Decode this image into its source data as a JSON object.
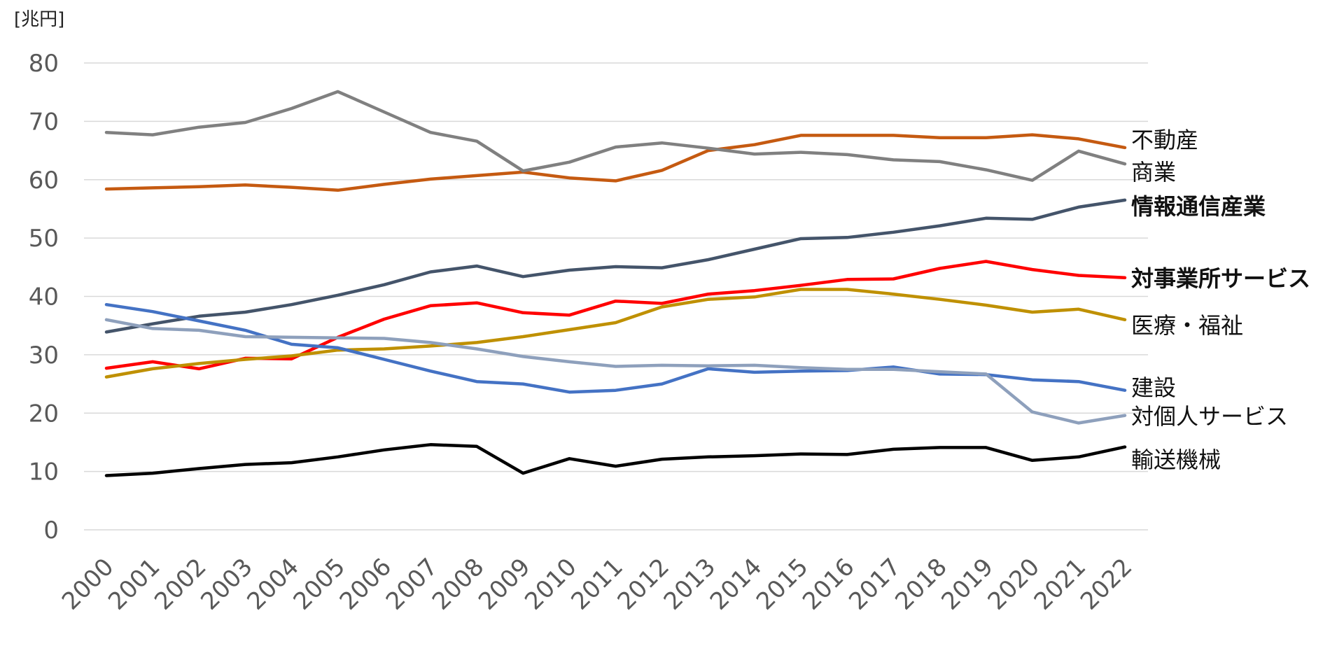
{
  "chart_data": {
    "type": "line",
    "unit_label": "[兆円]",
    "ylim": [
      0,
      80
    ],
    "yticks": [
      0,
      10,
      20,
      30,
      40,
      50,
      60,
      70,
      80
    ],
    "grid": true,
    "legend": "labels at right end of each line",
    "categories": [
      "2000",
      "2001",
      "2002",
      "2003",
      "2004",
      "2005",
      "2006",
      "2007",
      "2008",
      "2009",
      "2010",
      "2011",
      "2012",
      "2013",
      "2014",
      "2015",
      "2016",
      "2017",
      "2018",
      "2019",
      "2020",
      "2021",
      "2022"
    ],
    "series": [
      {
        "name": "不動産",
        "color": "#C55A11",
        "bold": false,
        "values": [
          58.4,
          58.6,
          58.8,
          59.1,
          58.7,
          58.2,
          59.2,
          60.1,
          60.7,
          61.3,
          60.3,
          59.8,
          61.6,
          65.0,
          66.0,
          67.6,
          67.6,
          67.6,
          67.2,
          67.2,
          67.7,
          67.0,
          65.5
        ]
      },
      {
        "name": "商業",
        "color": "#808080",
        "bold": false,
        "values": [
          68.1,
          67.7,
          69.0,
          69.8,
          72.2,
          75.1,
          71.6,
          68.1,
          66.6,
          61.5,
          63.0,
          65.6,
          66.3,
          65.4,
          64.4,
          64.7,
          64.3,
          63.4,
          63.1,
          61.7,
          59.9,
          64.9,
          62.7
        ]
      },
      {
        "name": "情報通信産業",
        "color": "#44546A",
        "bold": true,
        "values": [
          33.9,
          35.3,
          36.6,
          37.3,
          38.6,
          40.2,
          42.0,
          44.2,
          45.2,
          43.4,
          44.5,
          45.1,
          44.9,
          46.3,
          48.1,
          49.9,
          50.1,
          51.0,
          52.1,
          53.4,
          53.2,
          55.3,
          56.5
        ]
      },
      {
        "name": "対事業所サービス",
        "color": "#FF0000",
        "bold": true,
        "values": [
          27.7,
          28.8,
          27.6,
          29.4,
          29.3,
          33.0,
          36.1,
          38.4,
          38.9,
          37.2,
          36.8,
          39.2,
          38.8,
          40.4,
          41.0,
          41.9,
          42.9,
          43.0,
          44.8,
          46.0,
          44.6,
          43.6,
          43.2
        ]
      },
      {
        "name": "医療・福祉",
        "color": "#BF9000",
        "bold": false,
        "values": [
          26.2,
          27.6,
          28.5,
          29.2,
          29.8,
          30.8,
          31.0,
          31.5,
          32.1,
          33.1,
          34.3,
          35.5,
          38.2,
          39.5,
          39.9,
          41.2,
          41.2,
          40.4,
          39.5,
          38.5,
          37.3,
          37.8,
          36.0
        ]
      },
      {
        "name": "建設",
        "color": "#4472C4",
        "bold": false,
        "values": [
          38.6,
          37.4,
          35.8,
          34.2,
          31.8,
          31.2,
          29.2,
          27.2,
          25.4,
          25.0,
          23.6,
          23.9,
          25.0,
          27.6,
          27.0,
          27.2,
          27.3,
          27.9,
          26.7,
          26.6,
          25.7,
          25.4,
          23.9
        ]
      },
      {
        "name": "対個人サービス",
        "color": "#8EA0BC",
        "bold": false,
        "values": [
          36.0,
          34.5,
          34.2,
          33.1,
          33.0,
          32.9,
          32.8,
          32.1,
          31.0,
          29.7,
          28.8,
          28.0,
          28.2,
          28.1,
          28.2,
          27.8,
          27.5,
          27.5,
          27.1,
          26.7,
          20.2,
          18.3,
          19.6
        ]
      },
      {
        "name": "輸送機械",
        "color": "#000000",
        "bold": false,
        "values": [
          9.3,
          9.7,
          10.5,
          11.2,
          11.5,
          12.5,
          13.7,
          14.6,
          14.3,
          9.7,
          12.2,
          10.9,
          12.1,
          12.5,
          12.7,
          13.0,
          12.9,
          13.8,
          14.1,
          14.1,
          11.9,
          12.5,
          14.2
        ]
      }
    ]
  }
}
